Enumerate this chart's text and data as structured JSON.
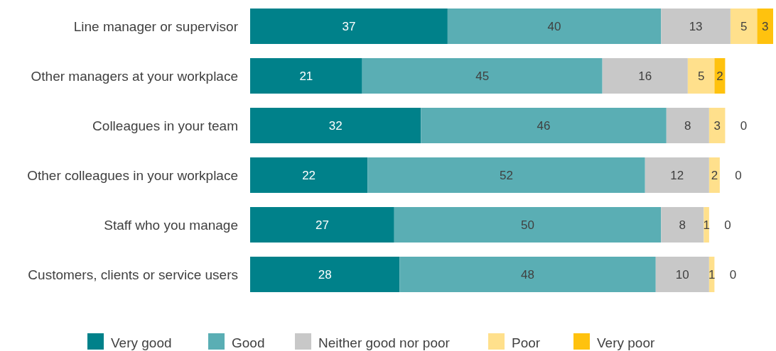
{
  "chart_data": {
    "type": "bar",
    "orientation": "horizontal",
    "stacked": true,
    "data_labels": true,
    "legend": "bottom",
    "categories": [
      "Line manager or supervisor",
      "Other managers at your workplace",
      "Colleagues in your team",
      "Other colleagues in your workplace",
      "Staff who you manage",
      "Customers, clients or service users"
    ],
    "series": [
      {
        "name": "Very good",
        "color": "#00818a",
        "values": [
          37,
          21,
          32,
          22,
          27,
          28
        ]
      },
      {
        "name": "Good",
        "color": "#5aaeb4",
        "values": [
          40,
          45,
          46,
          52,
          50,
          48
        ]
      },
      {
        "name": "Neither good nor poor",
        "color": "#c8c8c8",
        "values": [
          13,
          16,
          8,
          12,
          8,
          10
        ],
        "value_labels": [
          "13",
          "16",
          "8",
          "12",
          "8",
          "10"
        ]
      },
      {
        "name": "Poor",
        "color": "#ffe08c",
        "values": [
          5,
          5,
          3,
          2,
          1,
          1
        ],
        "value_labels": [
          "5",
          "5",
          "3",
          "2",
          "1",
          "1"
        ]
      },
      {
        "name": "Very poor",
        "color": "#ffc20e",
        "values": [
          3,
          2,
          0,
          0,
          0,
          0
        ],
        "value_labels": [
          "3",
          "2",
          "0",
          "0",
          "0",
          "0"
        ]
      }
    ]
  }
}
